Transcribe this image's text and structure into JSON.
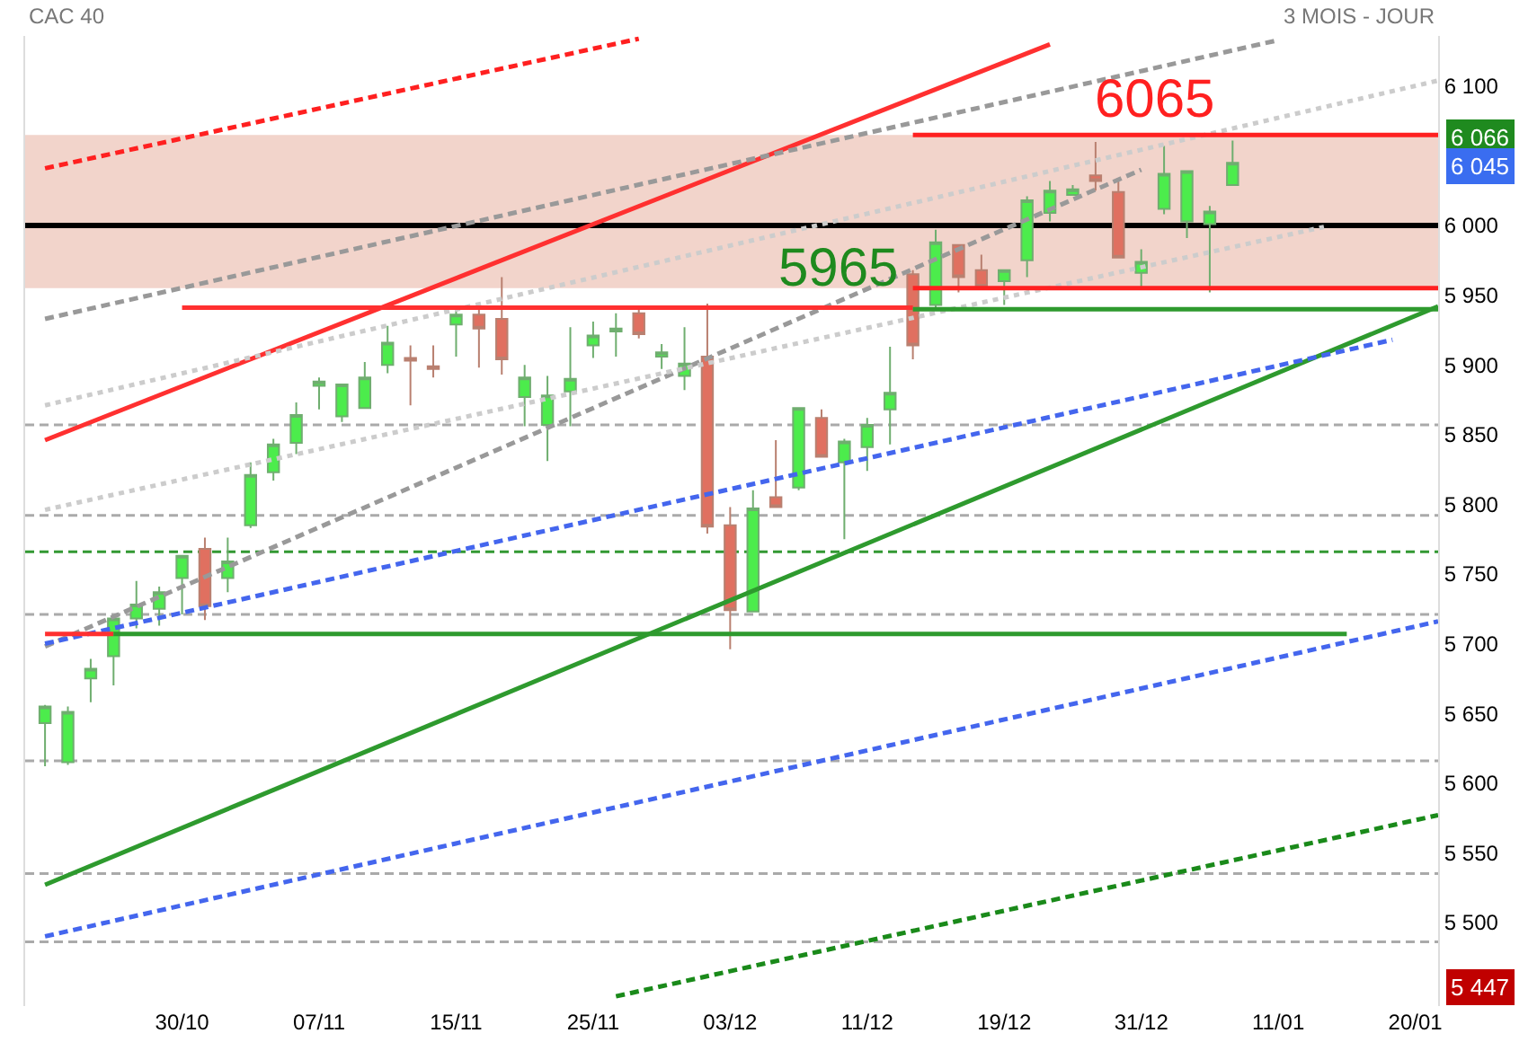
{
  "chart_data": {
    "type": "candlestick",
    "title": "CAC 40",
    "subtitle": "3 MOIS - JOUR",
    "categories": [
      null,
      null,
      null,
      null,
      null,
      null,
      "30/10",
      null,
      null,
      null,
      null,
      null,
      "07/11",
      null,
      null,
      null,
      null,
      null,
      "15/11",
      null,
      null,
      null,
      null,
      null,
      "25/11",
      null,
      null,
      null,
      null,
      null,
      "03/12",
      null,
      null,
      null,
      null,
      null,
      "11/12",
      null,
      null,
      null,
      null,
      null,
      "19/12",
      null,
      null,
      null,
      null,
      null,
      "31/12",
      null,
      null,
      null,
      null,
      null,
      "11/01",
      null,
      null,
      null,
      null,
      null,
      "20/01",
      null
    ],
    "ohlc": [
      [
        5643,
        5656,
        5612,
        5655
      ],
      [
        5615,
        5655,
        5613,
        5651
      ],
      [
        5675,
        5689,
        5658,
        5682
      ],
      [
        5691,
        5720,
        5670,
        5718
      ],
      [
        5718,
        5745,
        5711,
        5728
      ],
      [
        5725,
        5741,
        5713,
        5737
      ],
      [
        5747,
        5763,
        5721,
        5763
      ],
      [
        5768,
        5776,
        5717,
        5727
      ],
      [
        5747,
        5776,
        5737,
        5759
      ],
      [
        5785,
        5830,
        5783,
        5821
      ],
      [
        5823,
        5847,
        5817,
        5843
      ],
      [
        5844,
        5873,
        5836,
        5864
      ],
      [
        5885,
        5891,
        5868,
        5888
      ],
      [
        5863,
        5886,
        5859,
        5886
      ],
      [
        5869,
        5902,
        5869,
        5891
      ],
      [
        5900,
        5928,
        5894,
        5916
      ],
      [
        5905,
        5914,
        5871,
        5903
      ],
      [
        5899,
        5914,
        5891,
        5897
      ],
      [
        5929,
        5941,
        5906,
        5936
      ],
      [
        5936,
        5944,
        5898,
        5926
      ],
      [
        5933,
        5963,
        5893,
        5904
      ],
      [
        5877,
        5900,
        5856,
        5891
      ],
      [
        5857,
        5892,
        5831,
        5878
      ],
      [
        5881,
        5927,
        5856,
        5890
      ],
      [
        5914,
        5931,
        5905,
        5921
      ],
      [
        5924,
        5937,
        5906,
        5926
      ],
      [
        5937,
        5940,
        5919,
        5922
      ],
      [
        5906,
        5915,
        5897,
        5909
      ],
      [
        5892,
        5927,
        5882,
        5901
      ],
      [
        5906,
        5944,
        5779,
        5784
      ],
      [
        5785,
        5798,
        5696,
        5724
      ],
      [
        5723,
        5810,
        5723,
        5797
      ],
      [
        5805,
        5846,
        5798,
        5798
      ],
      [
        5812,
        5869,
        5810,
        5869
      ],
      [
        5862,
        5868,
        5834,
        5834
      ],
      [
        5830,
        5847,
        5775,
        5845
      ],
      [
        5841,
        5862,
        5824,
        5857
      ],
      [
        5868,
        5913,
        5843,
        5880
      ],
      [
        5965,
        5968,
        5904,
        5914
      ],
      [
        5943,
        5997,
        5940,
        5988
      ],
      [
        5986,
        5986,
        5952,
        5963
      ],
      [
        5968,
        5979,
        5956,
        5956
      ],
      [
        5960,
        5968,
        5943,
        5968
      ],
      [
        5975,
        6021,
        5963,
        6018
      ],
      [
        6009,
        6032,
        6003,
        6025
      ],
      [
        6022,
        6029,
        6022,
        6026
      ],
      [
        6036,
        6060,
        6025,
        6032
      ],
      [
        6024,
        6033,
        5977,
        5977
      ],
      [
        5966,
        5983,
        5956,
        5974
      ],
      [
        6012,
        6057,
        6008,
        6037
      ],
      [
        6003,
        6039,
        5991,
        6039
      ],
      [
        6001,
        6014,
        5952,
        6010
      ],
      [
        6029,
        6061,
        6029,
        6045
      ],
      null,
      null,
      null,
      null,
      null,
      null,
      null,
      null,
      null
    ],
    "series": [
      {
        "type": "line",
        "color": "#ff3030",
        "line_style": "solid",
        "values": [
          5846,
          null,
          null,
          null,
          null,
          null,
          null,
          null,
          null,
          null,
          null,
          null,
          null,
          null,
          null,
          null,
          null,
          null,
          null,
          null,
          null,
          null,
          null,
          null,
          null,
          null,
          null,
          null,
          null,
          null,
          null,
          null,
          null,
          null,
          null,
          null,
          null,
          null,
          null,
          null,
          null,
          null,
          null,
          null,
          6130,
          null,
          null,
          null,
          null,
          null,
          null,
          null,
          null,
          null,
          null,
          null,
          null,
          null,
          null,
          null,
          null,
          null
        ]
      },
      {
        "type": "line",
        "color": "#2e9a2e",
        "line_style": "solid",
        "values": [
          5527,
          null,
          null,
          null,
          null,
          null,
          null,
          null,
          null,
          null,
          null,
          null,
          null,
          null,
          null,
          null,
          null,
          null,
          null,
          null,
          null,
          null,
          null,
          null,
          null,
          null,
          null,
          null,
          null,
          null,
          null,
          null,
          null,
          null,
          null,
          null,
          null,
          null,
          null,
          null,
          null,
          null,
          null,
          null,
          null,
          null,
          null,
          null,
          null,
          null,
          null,
          null,
          null,
          null,
          null,
          null,
          null,
          null,
          null,
          null,
          null,
          5942
        ]
      },
      {
        "type": "line",
        "color": "#ff2020",
        "line_style": "dashed",
        "values": [
          6041,
          null,
          null,
          null,
          null,
          null,
          null,
          null,
          null,
          null,
          null,
          null,
          null,
          null,
          null,
          null,
          null,
          null,
          null,
          null,
          null,
          null,
          null,
          null,
          null,
          null,
          6134,
          null,
          null,
          null,
          null,
          null,
          null,
          null,
          null,
          null,
          null,
          null,
          null,
          null,
          null,
          null,
          null,
          null,
          null,
          null,
          null,
          null,
          null,
          null,
          null,
          null,
          null,
          null,
          null,
          null,
          null,
          null,
          null,
          null,
          null,
          null
        ]
      },
      {
        "type": "line",
        "color": "#1a8a1a",
        "line_style": "dashed",
        "values": [
          null,
          null,
          null,
          null,
          null,
          null,
          null,
          null,
          null,
          null,
          null,
          null,
          null,
          null,
          null,
          null,
          null,
          null,
          null,
          null,
          null,
          null,
          null,
          null,
          null,
          5447,
          null,
          null,
          null,
          null,
          null,
          null,
          null,
          null,
          null,
          null,
          null,
          null,
          null,
          null,
          null,
          null,
          null,
          null,
          null,
          null,
          null,
          null,
          null,
          null,
          null,
          null,
          null,
          null,
          null,
          null,
          null,
          null,
          null,
          null,
          null,
          5577
        ]
      },
      {
        "type": "line",
        "color": "#999999",
        "line_style": "dashed",
        "values": [
          5933,
          null,
          null,
          null,
          null,
          null,
          null,
          null,
          null,
          null,
          null,
          null,
          null,
          null,
          null,
          null,
          null,
          null,
          null,
          null,
          null,
          null,
          null,
          null,
          null,
          null,
          null,
          null,
          null,
          null,
          null,
          null,
          null,
          null,
          null,
          null,
          null,
          null,
          null,
          null,
          null,
          null,
          null,
          null,
          null,
          null,
          null,
          null,
          null,
          null,
          null,
          null,
          null,
          null,
          6133,
          null,
          null,
          null,
          null,
          null,
          null,
          null
        ]
      },
      {
        "type": "line",
        "color": "#cccccc",
        "line_style": "dotted",
        "values": [
          5871,
          null,
          null,
          null,
          null,
          null,
          null,
          null,
          null,
          null,
          null,
          null,
          null,
          null,
          null,
          null,
          null,
          null,
          null,
          null,
          null,
          null,
          null,
          null,
          null,
          null,
          null,
          null,
          null,
          null,
          null,
          null,
          null,
          null,
          null,
          null,
          null,
          null,
          null,
          null,
          null,
          null,
          null,
          null,
          null,
          null,
          null,
          null,
          null,
          null,
          null,
          null,
          null,
          null,
          null,
          null,
          null,
          null,
          null,
          null,
          null,
          6104
        ]
      },
      {
        "type": "line",
        "color": "#999999",
        "line_style": "dashed",
        "values": [
          5698,
          null,
          null,
          null,
          null,
          null,
          null,
          null,
          null,
          null,
          null,
          null,
          null,
          null,
          null,
          null,
          null,
          null,
          null,
          null,
          null,
          null,
          null,
          null,
          null,
          null,
          null,
          null,
          null,
          null,
          null,
          null,
          null,
          null,
          null,
          null,
          null,
          null,
          null,
          null,
          null,
          null,
          null,
          null,
          null,
          null,
          null,
          null,
          6040,
          null,
          null,
          null,
          null,
          null,
          null,
          null,
          null,
          null,
          null,
          null,
          null,
          null
        ]
      },
      {
        "type": "line",
        "color": "#cccccc",
        "line_style": "dotted",
        "values": [
          5796,
          null,
          null,
          null,
          null,
          null,
          null,
          null,
          null,
          null,
          null,
          null,
          null,
          null,
          null,
          null,
          null,
          null,
          null,
          null,
          null,
          null,
          null,
          null,
          null,
          null,
          null,
          null,
          null,
          null,
          null,
          null,
          null,
          null,
          null,
          null,
          null,
          null,
          null,
          null,
          null,
          null,
          null,
          null,
          null,
          null,
          null,
          null,
          null,
          null,
          null,
          null,
          null,
          null,
          null,
          null,
          5999,
          null,
          null,
          null,
          null,
          null
        ]
      },
      {
        "type": "line",
        "color": "#4466ee",
        "line_style": "dashed",
        "values": [
          5700,
          null,
          null,
          null,
          null,
          null,
          null,
          null,
          null,
          null,
          null,
          null,
          null,
          null,
          null,
          null,
          null,
          null,
          null,
          null,
          null,
          null,
          null,
          null,
          null,
          null,
          null,
          null,
          null,
          null,
          null,
          null,
          null,
          null,
          null,
          null,
          null,
          null,
          null,
          null,
          null,
          null,
          null,
          null,
          null,
          null,
          null,
          null,
          null,
          null,
          null,
          null,
          null,
          null,
          null,
          null,
          null,
          null,
          null,
          5918,
          null,
          null
        ]
      },
      {
        "type": "line",
        "color": "#4466ee",
        "line_style": "dashed",
        "values": [
          5490,
          null,
          null,
          null,
          null,
          null,
          null,
          null,
          null,
          null,
          null,
          null,
          null,
          null,
          null,
          null,
          null,
          null,
          null,
          null,
          null,
          null,
          null,
          null,
          null,
          null,
          null,
          null,
          null,
          null,
          null,
          null,
          null,
          null,
          null,
          null,
          null,
          null,
          null,
          null,
          null,
          null,
          null,
          null,
          null,
          null,
          null,
          null,
          null,
          null,
          null,
          null,
          null,
          null,
          null,
          null,
          null,
          null,
          null,
          null,
          null,
          5716
        ]
      },
      {
        "type": "line",
        "color": "#ff3030",
        "line_style": "solid",
        "values": [
          null,
          null,
          null,
          null,
          null,
          null,
          5941,
          null,
          null,
          null,
          null,
          null,
          null,
          null,
          null,
          null,
          null,
          null,
          null,
          null,
          null,
          null,
          null,
          null,
          null,
          null,
          null,
          null,
          null,
          null,
          null,
          null,
          null,
          null,
          null,
          null,
          null,
          null,
          5941,
          null,
          null,
          null,
          null,
          null,
          null,
          null,
          null,
          null,
          null,
          null,
          null,
          null,
          null,
          null,
          null,
          null,
          null,
          null,
          null,
          null,
          null,
          null
        ]
      },
      {
        "type": "line",
        "color": "#2e9a2e",
        "line_style": "solid",
        "values": [
          null,
          null,
          null,
          null,
          null,
          null,
          null,
          null,
          null,
          null,
          null,
          null,
          null,
          null,
          null,
          null,
          null,
          null,
          null,
          null,
          null,
          null,
          null,
          null,
          null,
          null,
          null,
          null,
          null,
          null,
          null,
          null,
          null,
          null,
          null,
          null,
          null,
          null,
          5940,
          null,
          null,
          null,
          null,
          null,
          null,
          null,
          null,
          null,
          null,
          null,
          null,
          null,
          null,
          null,
          null,
          null,
          null,
          null,
          null,
          null,
          null,
          5940
        ]
      },
      {
        "type": "line",
        "color": "#ff3030",
        "line_style": "solid",
        "values": [
          5707,
          null,
          null,
          5707,
          null,
          null,
          null,
          null,
          null,
          null,
          null,
          null,
          null,
          null,
          null,
          null,
          null,
          null,
          null,
          null,
          null,
          null,
          null,
          null,
          null,
          null,
          null,
          null,
          null,
          null,
          null,
          null,
          null,
          null,
          null,
          null,
          null,
          null,
          null,
          null,
          null,
          null,
          null,
          null,
          null,
          null,
          null,
          null,
          null,
          null,
          null,
          null,
          null,
          null,
          null,
          null,
          null,
          null,
          null,
          null,
          null,
          null
        ]
      },
      {
        "type": "line",
        "color": "#2e9a2e",
        "line_style": "solid",
        "values": [
          null,
          null,
          null,
          5707,
          null,
          null,
          null,
          null,
          null,
          null,
          null,
          null,
          null,
          null,
          null,
          null,
          null,
          null,
          null,
          null,
          null,
          null,
          null,
          null,
          null,
          null,
          null,
          null,
          null,
          null,
          null,
          null,
          null,
          null,
          null,
          null,
          null,
          null,
          null,
          null,
          null,
          null,
          null,
          null,
          null,
          null,
          null,
          null,
          null,
          null,
          null,
          null,
          null,
          null,
          null,
          null,
          null,
          5707,
          null,
          null,
          null,
          null
        ]
      },
      {
        "type": "line",
        "color": "#ff2020",
        "line_style": "solid",
        "values": [
          null,
          null,
          null,
          null,
          null,
          null,
          null,
          null,
          null,
          null,
          null,
          null,
          null,
          null,
          null,
          null,
          null,
          null,
          null,
          null,
          null,
          null,
          null,
          null,
          null,
          null,
          null,
          null,
          null,
          null,
          null,
          null,
          null,
          null,
          null,
          null,
          null,
          null,
          6065,
          null,
          null,
          null,
          null,
          null,
          null,
          null,
          null,
          null,
          null,
          null,
          null,
          null,
          null,
          null,
          null,
          null,
          null,
          null,
          null,
          null,
          null,
          6065
        ]
      },
      {
        "type": "line",
        "color": "#ff2020",
        "line_style": "solid",
        "values": [
          null,
          null,
          null,
          null,
          null,
          null,
          null,
          null,
          null,
          null,
          null,
          null,
          null,
          null,
          null,
          null,
          null,
          null,
          null,
          null,
          null,
          null,
          null,
          null,
          null,
          null,
          null,
          null,
          null,
          null,
          null,
          null,
          null,
          null,
          null,
          null,
          null,
          null,
          5955,
          null,
          null,
          null,
          null,
          null,
          null,
          null,
          null,
          null,
          null,
          null,
          null,
          null,
          null,
          null,
          null,
          null,
          null,
          null,
          null,
          null,
          null,
          5955
        ]
      }
    ],
    "ref_lines": [
      {
        "axis": "y",
        "value": 6000,
        "color": "#000000",
        "line_style": "solid"
      },
      {
        "axis": "y",
        "value": 5857,
        "color": "#aaaaaa",
        "line_style": "dashed"
      },
      {
        "axis": "y",
        "value": 5792,
        "color": "#aaaaaa",
        "line_style": "dashed"
      },
      {
        "axis": "y",
        "value": 5766,
        "color": "#339933",
        "line_style": "dashed"
      },
      {
        "axis": "y",
        "value": 5721,
        "color": "#aaaaaa",
        "line_style": "dashed"
      },
      {
        "axis": "y",
        "value": 5616,
        "color": "#aaaaaa",
        "line_style": "dashed"
      },
      {
        "axis": "y",
        "value": 5535,
        "color": "#aaaaaa",
        "line_style": "dashed"
      },
      {
        "axis": "y",
        "value": 5486,
        "color": "#aaaaaa",
        "line_style": "dashed"
      }
    ],
    "bands": [
      {
        "axis": "y",
        "from": 5955,
        "to": 6065,
        "color": "#e8b0a0"
      }
    ],
    "annotations": [
      "5965",
      {
        "text": "6065",
        "y": 6065
      },
      "6 066",
      "6 045",
      "5 447"
    ],
    "ylim": [
      5440,
      6136
    ],
    "yticks": [
      {
        "value": 5500,
        "label": "5 500"
      },
      {
        "value": 5550,
        "label": "5 550"
      },
      {
        "value": 5600,
        "label": "5 600"
      },
      {
        "value": 5650,
        "label": "5 650"
      },
      {
        "value": 5700,
        "label": "5 700"
      },
      {
        "value": 5750,
        "label": "5 750"
      },
      {
        "value": 5800,
        "label": "5 800"
      },
      {
        "value": 5850,
        "label": "5 850"
      },
      {
        "value": 5900,
        "label": "5 900"
      },
      {
        "value": 5950,
        "label": "5 950"
      },
      {
        "value": 6000,
        "label": "6 000"
      },
      {
        "value": 6100,
        "label": "6 100"
      }
    ]
  }
}
